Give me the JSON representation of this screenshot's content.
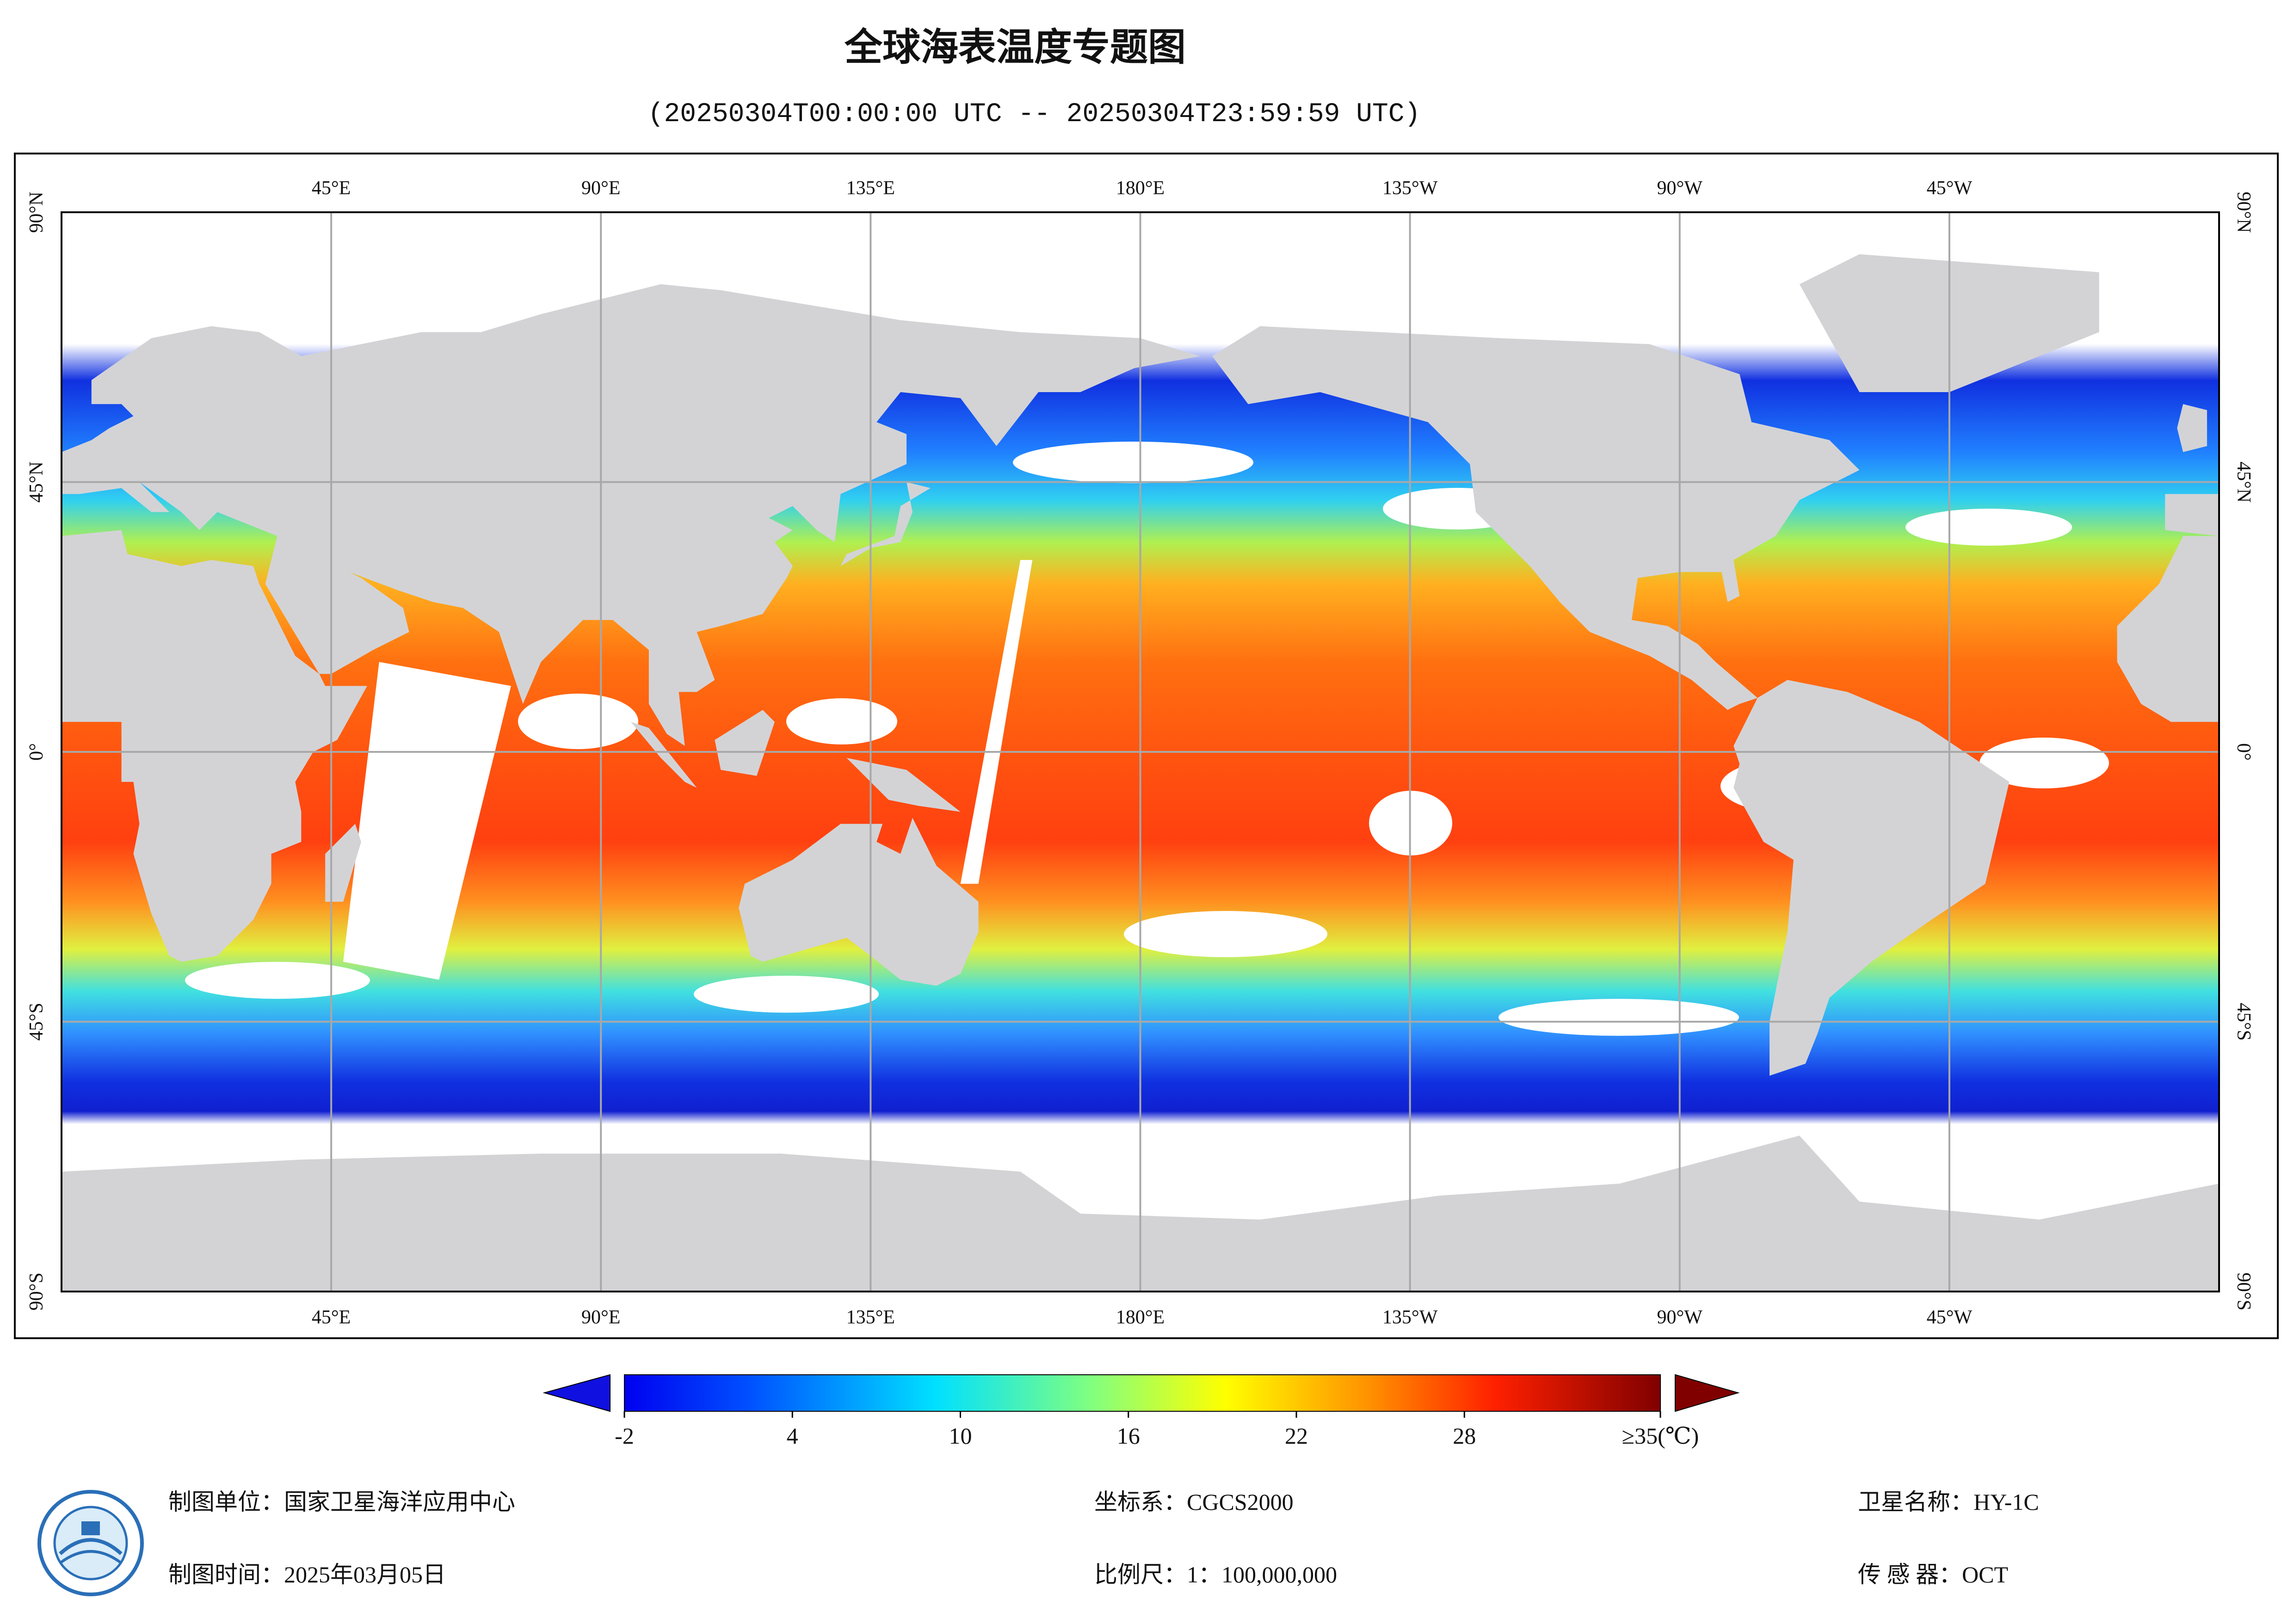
{
  "title": "全球海表温度专题图",
  "subtitle": "(20250304T00:00:00 UTC -- 20250304T23:59:59 UTC)",
  "map": {
    "lon_labels": [
      "45°E",
      "90°E",
      "135°E",
      "180°E",
      "135°W",
      "90°W",
      "45°W"
    ],
    "lat_labels": [
      "90°N",
      "45°N",
      "0°",
      "45°S",
      "90°S"
    ]
  },
  "colorbar": {
    "range": [
      -2,
      35
    ],
    "ticks": [
      -2,
      4,
      10,
      16,
      22,
      28,
      {
        "value": 35,
        "label": "≥35(℃)"
      }
    ]
  },
  "footer": {
    "producer": "制图单位：国家卫星海洋应用中心",
    "date": "制图时间：2025年03月05日",
    "crs": "坐标系：CGCS2000",
    "scale": "比例尺：1：100,000,000",
    "satellite": "卫星名称：HY-1C",
    "sensor": "传 感 器：OCT"
  }
}
